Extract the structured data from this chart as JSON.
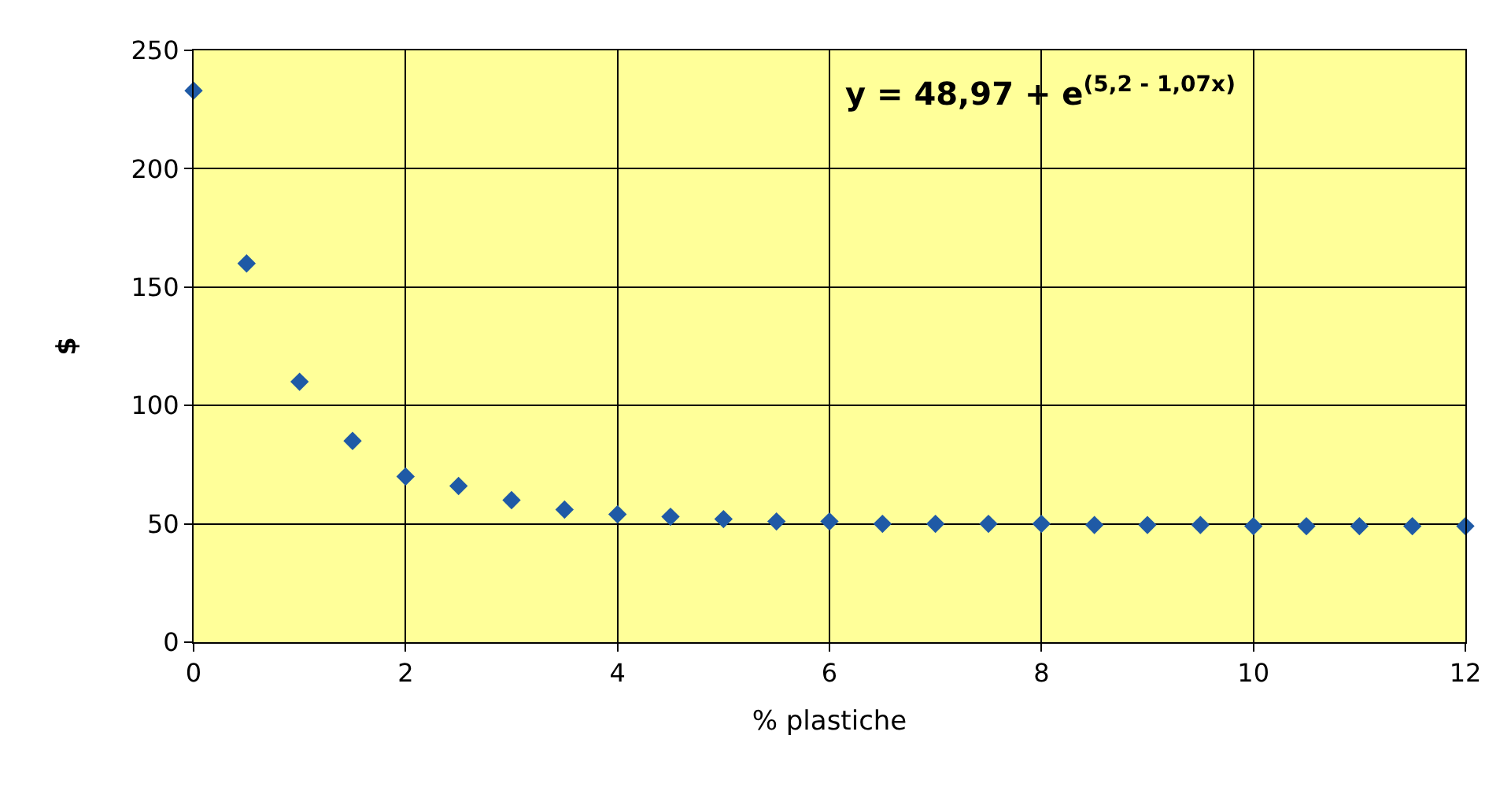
{
  "chart_data": {
    "type": "scatter",
    "xlabel": "% plastiche",
    "ylabel": "$",
    "x": [
      0,
      0.5,
      1,
      1.5,
      2,
      2.5,
      3,
      3.5,
      4,
      4.5,
      5,
      5.5,
      6,
      6.5,
      7,
      7.5,
      8,
      8.5,
      9,
      9.5,
      10,
      10.5,
      11,
      11.5,
      12
    ],
    "series": [
      {
        "color": "#1f5aa6",
        "values": [
          233,
          160,
          110,
          85,
          70,
          66,
          60,
          56,
          54,
          53,
          52,
          51,
          51,
          50,
          50,
          50,
          50,
          49.5,
          49.5,
          49.5,
          49,
          49,
          49,
          49,
          49
        ]
      }
    ],
    "xlim": [
      0,
      12
    ],
    "xticks": [
      0,
      2,
      4,
      6,
      8,
      10,
      12
    ],
    "ylim": [
      0,
      250
    ],
    "yticks": [
      0,
      50,
      100,
      150,
      200,
      250
    ],
    "grid": true,
    "marker": "diamond",
    "legend": false,
    "annotations": [
      "y = 48,97 + e$^{(5,2 - 1,07x)}$"
    ]
  }
}
